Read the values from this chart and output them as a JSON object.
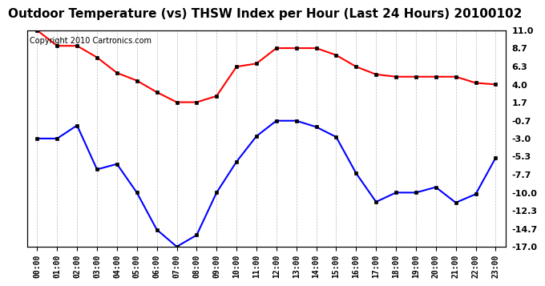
{
  "title": "Outdoor Temperature (vs) THSW Index per Hour (Last 24 Hours) 20100102",
  "copyright_text": "Copyright 2010 Cartronics.com",
  "hours": [
    "00:00",
    "01:00",
    "02:00",
    "03:00",
    "04:00",
    "05:00",
    "06:00",
    "07:00",
    "08:00",
    "09:00",
    "10:00",
    "11:00",
    "12:00",
    "13:00",
    "14:00",
    "15:00",
    "16:00",
    "17:00",
    "18:00",
    "19:00",
    "20:00",
    "21:00",
    "22:00",
    "23:00"
  ],
  "red_data": [
    11.0,
    9.0,
    9.0,
    7.5,
    5.5,
    4.5,
    3.0,
    1.7,
    1.7,
    2.5,
    6.3,
    6.7,
    8.7,
    8.7,
    8.7,
    7.8,
    6.3,
    5.3,
    5.0,
    5.0,
    5.0,
    5.0,
    4.2,
    4.0
  ],
  "blue_data": [
    -3.0,
    -3.0,
    -1.3,
    -7.0,
    -6.3,
    -10.0,
    -14.8,
    -17.0,
    -15.5,
    -10.0,
    -6.0,
    -2.7,
    -0.7,
    -0.7,
    -1.5,
    -2.8,
    -7.5,
    -11.2,
    -10.0,
    -10.0,
    -9.3,
    -11.3,
    -10.2,
    -5.5
  ],
  "ylim": [
    -17.0,
    11.0
  ],
  "yticks_right": [
    11.0,
    8.7,
    6.3,
    4.0,
    1.7,
    -0.7,
    -3.0,
    -5.3,
    -7.7,
    -10.0,
    -12.3,
    -14.7,
    -17.0
  ],
  "red_color": "#ff0000",
  "blue_color": "#0000ff",
  "bg_color": "#ffffff",
  "grid_color": "#bbbbbb",
  "title_fontsize": 11,
  "copyright_fontsize": 7,
  "marker": "s",
  "marker_size": 3,
  "line_width": 1.5
}
